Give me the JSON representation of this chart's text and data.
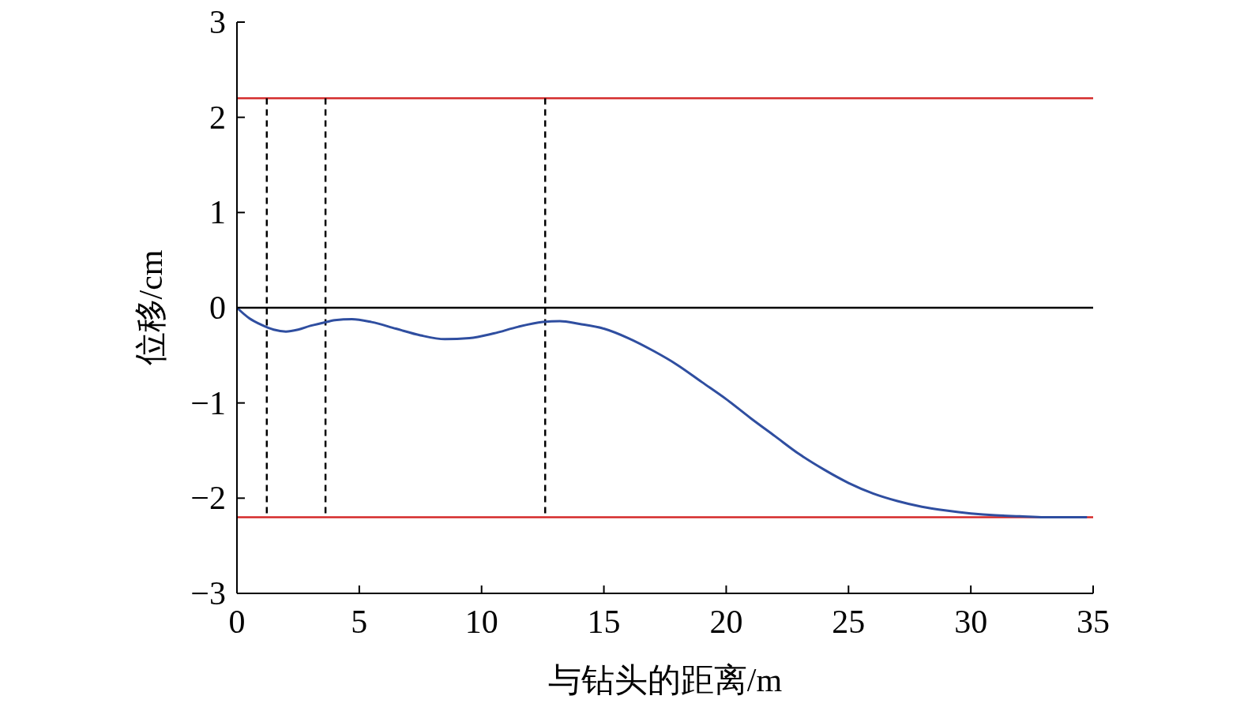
{
  "chart_data": {
    "type": "line",
    "xlabel": "与钻头的距离/m",
    "ylabel": "位移/cm",
    "xlim": [
      0,
      35
    ],
    "ylim": [
      -3,
      3
    ],
    "xticks": [
      0,
      5,
      10,
      15,
      20,
      25,
      30,
      35
    ],
    "yticks": [
      {
        "value": -3,
        "label": "−3"
      },
      {
        "value": -2,
        "label": "−2"
      },
      {
        "value": -1,
        "label": "−1"
      },
      0,
      1,
      2,
      3
    ],
    "marker": "none",
    "line_style": "solid",
    "x": [
      0,
      0.5,
      1,
      1.5,
      2,
      2.5,
      3,
      3.5,
      4,
      4.7,
      5.5,
      6.5,
      7.5,
      8.5,
      9.5,
      10.5,
      11.5,
      12.5,
      13.2,
      14,
      15,
      16,
      17,
      18,
      19,
      20,
      21,
      22,
      23,
      24,
      25,
      26,
      27,
      28,
      29,
      30,
      31,
      32,
      33,
      34,
      34.75
    ],
    "series": [
      {
        "color": "#2f4ea0",
        "values": [
          0,
          -0.11,
          -0.18,
          -0.23,
          -0.25,
          -0.23,
          -0.19,
          -0.16,
          -0.13,
          -0.12,
          -0.15,
          -0.22,
          -0.29,
          -0.33,
          -0.32,
          -0.27,
          -0.2,
          -0.15,
          -0.14,
          -0.17,
          -0.22,
          -0.32,
          -0.45,
          -0.6,
          -0.78,
          -0.96,
          -1.16,
          -1.35,
          -1.54,
          -1.7,
          -1.84,
          -1.95,
          -2.03,
          -2.09,
          -2.13,
          -2.16,
          -2.18,
          -2.19,
          -2.2,
          -2.2,
          -2.2
        ]
      }
    ],
    "ref_lines": [
      {
        "axis": "y",
        "value": 2.2,
        "color": "#d42a2a",
        "line_style": "solid"
      },
      {
        "axis": "y",
        "value": -2.2,
        "color": "#d42a2a",
        "line_style": "solid"
      },
      {
        "axis": "y",
        "value": 0,
        "color": "#000000",
        "line_style": "solid"
      },
      {
        "axis": "x",
        "value": 1.22,
        "color": "#000000",
        "line_style": "dashed"
      },
      {
        "axis": "x",
        "value": 3.62,
        "color": "#000000",
        "line_style": "dashed"
      },
      {
        "axis": "x",
        "value": 12.6,
        "color": "#000000",
        "line_style": "dashed"
      }
    ]
  }
}
